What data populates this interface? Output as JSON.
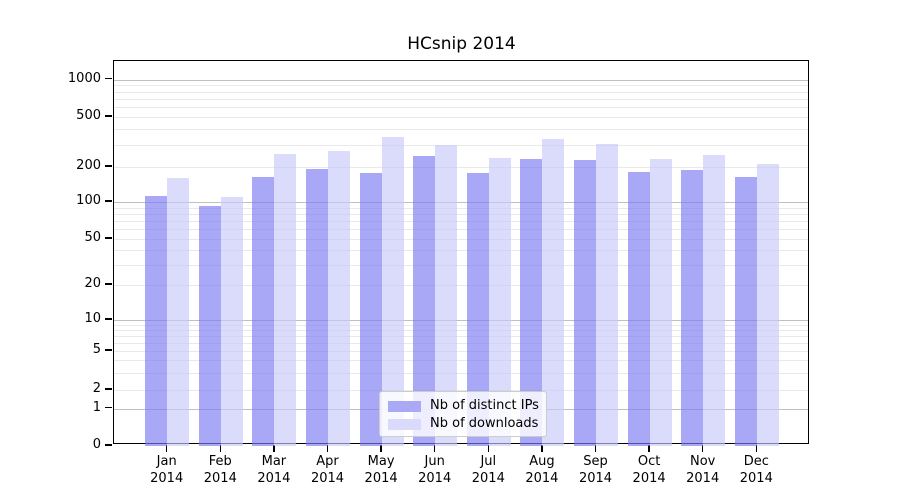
{
  "title": "HCsnip 2014",
  "legend": {
    "items": [
      {
        "label": "Nb of distinct IPs",
        "color": "#a9a9f5"
      },
      {
        "label": "Nb of downloads",
        "color": "#dadafb"
      }
    ]
  },
  "axes": {
    "y_tick_labels": [
      "1000",
      "500",
      "200",
      "100",
      "50",
      "20",
      "10",
      "5",
      "2",
      "1",
      "0"
    ],
    "x_tick_months": [
      "Jan",
      "Feb",
      "Mar",
      "Apr",
      "May",
      "Jun",
      "Jul",
      "Aug",
      "Sep",
      "Oct",
      "Nov",
      "Dec"
    ],
    "x_tick_year": "2014"
  },
  "chart_data": {
    "type": "bar",
    "title": "HCsnip 2014",
    "categories": [
      "Jan 2014",
      "Feb 2014",
      "Mar 2014",
      "Apr 2014",
      "May 2014",
      "Jun 2014",
      "Jul 2014",
      "Aug 2014",
      "Sep 2014",
      "Oct 2014",
      "Nov 2014",
      "Dec 2014"
    ],
    "series": [
      {
        "name": "Nb of distinct IPs",
        "color": "rgba(122,122,242,0.65)",
        "values": [
          113,
          92,
          165,
          192,
          178,
          244,
          176,
          230,
          227,
          181,
          188,
          164
        ]
      },
      {
        "name": "Nb of downloads",
        "color": "rgba(200,200,250,0.65)",
        "values": [
          161,
          110,
          253,
          266,
          345,
          300,
          235,
          335,
          305,
          233,
          250,
          213
        ]
      }
    ],
    "yscale": "log (with 0 baseline segment below 1)",
    "y_tick_values": [
      1000,
      500,
      200,
      100,
      50,
      20,
      10,
      5,
      2,
      1,
      0
    ],
    "ylim": [
      0,
      1400
    ],
    "xlabel": "",
    "ylabel": "",
    "grid": "horizontal gridlines: dark at powers of 10, light at log minors",
    "legend_position": "inside, lower center"
  }
}
